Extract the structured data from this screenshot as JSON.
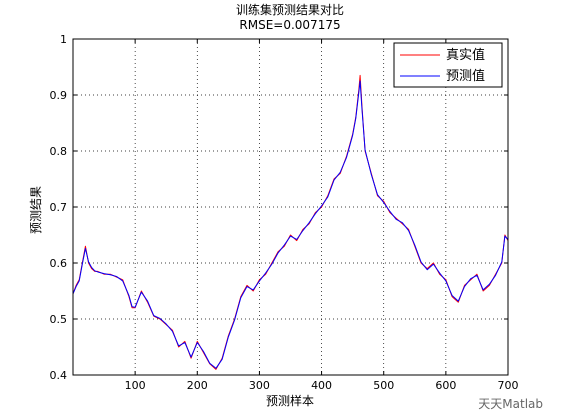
{
  "chart_data": {
    "type": "line",
    "title": "训练集预测结果对比",
    "subtitle": "RMSE=0.007175",
    "xlabel": "预测样本",
    "ylabel": "预测结果",
    "xlim": [
      0,
      700
    ],
    "ylim": [
      0.4,
      1.0
    ],
    "xticks": [
      "100",
      "200",
      "300",
      "400",
      "500",
      "600",
      "700"
    ],
    "yticks": [
      "0.4",
      "0.5",
      "0.6",
      "0.7",
      "0.8",
      "0.9",
      "1"
    ],
    "grid": true,
    "legend_position": "top-right",
    "series": [
      {
        "name": "真实值",
        "color": "#ff0000",
        "x": [
          0,
          5,
          10,
          15,
          20,
          25,
          30,
          35,
          40,
          50,
          60,
          70,
          80,
          90,
          95,
          100,
          110,
          120,
          130,
          140,
          150,
          160,
          170,
          180,
          190,
          200,
          210,
          220,
          230,
          240,
          250,
          260,
          270,
          280,
          290,
          300,
          310,
          320,
          330,
          340,
          350,
          360,
          370,
          380,
          390,
          400,
          410,
          420,
          430,
          440,
          450,
          455,
          460,
          462,
          465,
          470,
          480,
          490,
          500,
          510,
          520,
          530,
          540,
          550,
          560,
          570,
          580,
          590,
          600,
          610,
          620,
          630,
          640,
          650,
          660,
          670,
          680,
          690,
          695,
          700
        ],
        "y": [
          0.545,
          0.56,
          0.57,
          0.6,
          0.63,
          0.6,
          0.59,
          0.585,
          0.585,
          0.58,
          0.58,
          0.575,
          0.57,
          0.54,
          0.52,
          0.52,
          0.55,
          0.53,
          0.505,
          0.5,
          0.49,
          0.48,
          0.45,
          0.46,
          0.43,
          0.46,
          0.44,
          0.42,
          0.41,
          0.43,
          0.47,
          0.5,
          0.54,
          0.56,
          0.55,
          0.57,
          0.58,
          0.6,
          0.62,
          0.63,
          0.65,
          0.64,
          0.66,
          0.67,
          0.69,
          0.7,
          0.72,
          0.75,
          0.76,
          0.79,
          0.83,
          0.86,
          0.91,
          0.935,
          0.88,
          0.8,
          0.76,
          0.72,
          0.71,
          0.69,
          0.68,
          0.67,
          0.66,
          0.63,
          0.6,
          0.59,
          0.6,
          0.58,
          0.57,
          0.54,
          0.53,
          0.56,
          0.57,
          0.58,
          0.55,
          0.56,
          0.58,
          0.6,
          0.65,
          0.64
        ]
      },
      {
        "name": "预测值",
        "color": "#0000ff",
        "x": [
          0,
          5,
          10,
          15,
          20,
          25,
          30,
          35,
          40,
          50,
          60,
          70,
          80,
          90,
          95,
          100,
          110,
          120,
          130,
          140,
          150,
          160,
          170,
          180,
          190,
          200,
          210,
          220,
          230,
          240,
          250,
          260,
          270,
          280,
          290,
          300,
          310,
          320,
          330,
          340,
          350,
          360,
          370,
          380,
          390,
          400,
          410,
          420,
          430,
          440,
          450,
          455,
          460,
          462,
          465,
          470,
          480,
          490,
          500,
          510,
          520,
          530,
          540,
          550,
          560,
          570,
          580,
          590,
          600,
          610,
          620,
          630,
          640,
          650,
          660,
          670,
          680,
          690,
          695,
          700
        ],
        "y": [
          0.545,
          0.558,
          0.568,
          0.598,
          0.626,
          0.602,
          0.592,
          0.586,
          0.584,
          0.581,
          0.579,
          0.576,
          0.568,
          0.542,
          0.522,
          0.521,
          0.548,
          0.532,
          0.506,
          0.501,
          0.491,
          0.478,
          0.452,
          0.458,
          0.432,
          0.458,
          0.442,
          0.421,
          0.412,
          0.428,
          0.468,
          0.498,
          0.538,
          0.558,
          0.552,
          0.568,
          0.582,
          0.598,
          0.618,
          0.632,
          0.648,
          0.642,
          0.658,
          0.672,
          0.688,
          0.702,
          0.718,
          0.748,
          0.762,
          0.788,
          0.828,
          0.858,
          0.905,
          0.925,
          0.875,
          0.802,
          0.758,
          0.722,
          0.708,
          0.692,
          0.678,
          0.672,
          0.658,
          0.632,
          0.602,
          0.588,
          0.598,
          0.582,
          0.568,
          0.542,
          0.532,
          0.558,
          0.572,
          0.578,
          0.552,
          0.562,
          0.578,
          0.602,
          0.648,
          0.642
        ]
      }
    ]
  },
  "watermark": "天天Matlab"
}
